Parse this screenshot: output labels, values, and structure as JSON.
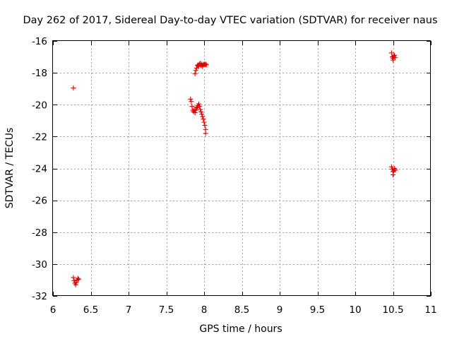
{
  "chart_data": {
    "type": "scatter",
    "title": "Day 262 of 2017, Sidereal Day-to-day VTEC variation (SDTVAR) for receiver naus",
    "xlabel": "GPS time / hours",
    "ylabel": "SDTVAR / TECUs",
    "xlim": [
      6,
      11
    ],
    "ylim": [
      -32,
      -16
    ],
    "xticks": [
      "6",
      "6.5",
      "7",
      "7.5",
      "8",
      "8.5",
      "9",
      "9.5",
      "10",
      "10.5",
      "11"
    ],
    "yticks": [
      "-16",
      "-18",
      "-20",
      "-22",
      "-24",
      "-26",
      "-28",
      "-30",
      "-32"
    ],
    "grid": true,
    "marker": "plus",
    "color": "#e00000",
    "series": [
      {
        "name": "SDTVAR",
        "points": [
          [
            6.27,
            -18.95
          ],
          [
            6.27,
            -30.85
          ],
          [
            6.28,
            -31.05
          ],
          [
            6.29,
            -31.2
          ],
          [
            6.3,
            -31.3
          ],
          [
            6.31,
            -31.15
          ],
          [
            6.32,
            -31.0
          ],
          [
            6.33,
            -30.9
          ],
          [
            6.34,
            -30.95
          ],
          [
            7.82,
            -19.65
          ],
          [
            7.83,
            -19.8
          ],
          [
            7.84,
            -20.1
          ],
          [
            7.85,
            -20.35
          ],
          [
            7.86,
            -20.45
          ],
          [
            7.87,
            -20.3
          ],
          [
            7.88,
            -20.5
          ],
          [
            7.89,
            -20.35
          ],
          [
            7.9,
            -20.2
          ],
          [
            7.91,
            -20.15
          ],
          [
            7.92,
            -20.05
          ],
          [
            7.93,
            -19.95
          ],
          [
            7.94,
            -20.1
          ],
          [
            7.95,
            -20.3
          ],
          [
            7.96,
            -20.45
          ],
          [
            7.97,
            -20.6
          ],
          [
            7.98,
            -20.75
          ],
          [
            7.99,
            -20.9
          ],
          [
            8.0,
            -21.1
          ],
          [
            8.01,
            -21.3
          ],
          [
            8.02,
            -21.55
          ],
          [
            8.02,
            -21.8
          ],
          [
            7.88,
            -18.05
          ],
          [
            7.89,
            -17.85
          ],
          [
            7.9,
            -17.7
          ],
          [
            7.91,
            -17.55
          ],
          [
            7.92,
            -17.5
          ],
          [
            7.93,
            -17.6
          ],
          [
            7.94,
            -17.45
          ],
          [
            7.95,
            -17.4
          ],
          [
            7.96,
            -17.55
          ],
          [
            7.97,
            -17.45
          ],
          [
            7.98,
            -17.6
          ],
          [
            7.99,
            -17.5
          ],
          [
            8.0,
            -17.45
          ],
          [
            8.01,
            -17.5
          ],
          [
            8.02,
            -17.45
          ],
          [
            8.03,
            -17.5
          ],
          [
            10.48,
            -16.75
          ],
          [
            10.49,
            -17.0
          ],
          [
            10.5,
            -17.2
          ],
          [
            10.5,
            -17.1
          ],
          [
            10.51,
            -16.95
          ],
          [
            10.52,
            -16.9
          ],
          [
            10.53,
            -17.05
          ],
          [
            10.48,
            -23.9
          ],
          [
            10.49,
            -24.05
          ],
          [
            10.5,
            -24.2
          ],
          [
            10.5,
            -24.4
          ],
          [
            10.51,
            -24.15
          ],
          [
            10.52,
            -24.0
          ],
          [
            10.53,
            -24.1
          ]
        ]
      }
    ]
  }
}
